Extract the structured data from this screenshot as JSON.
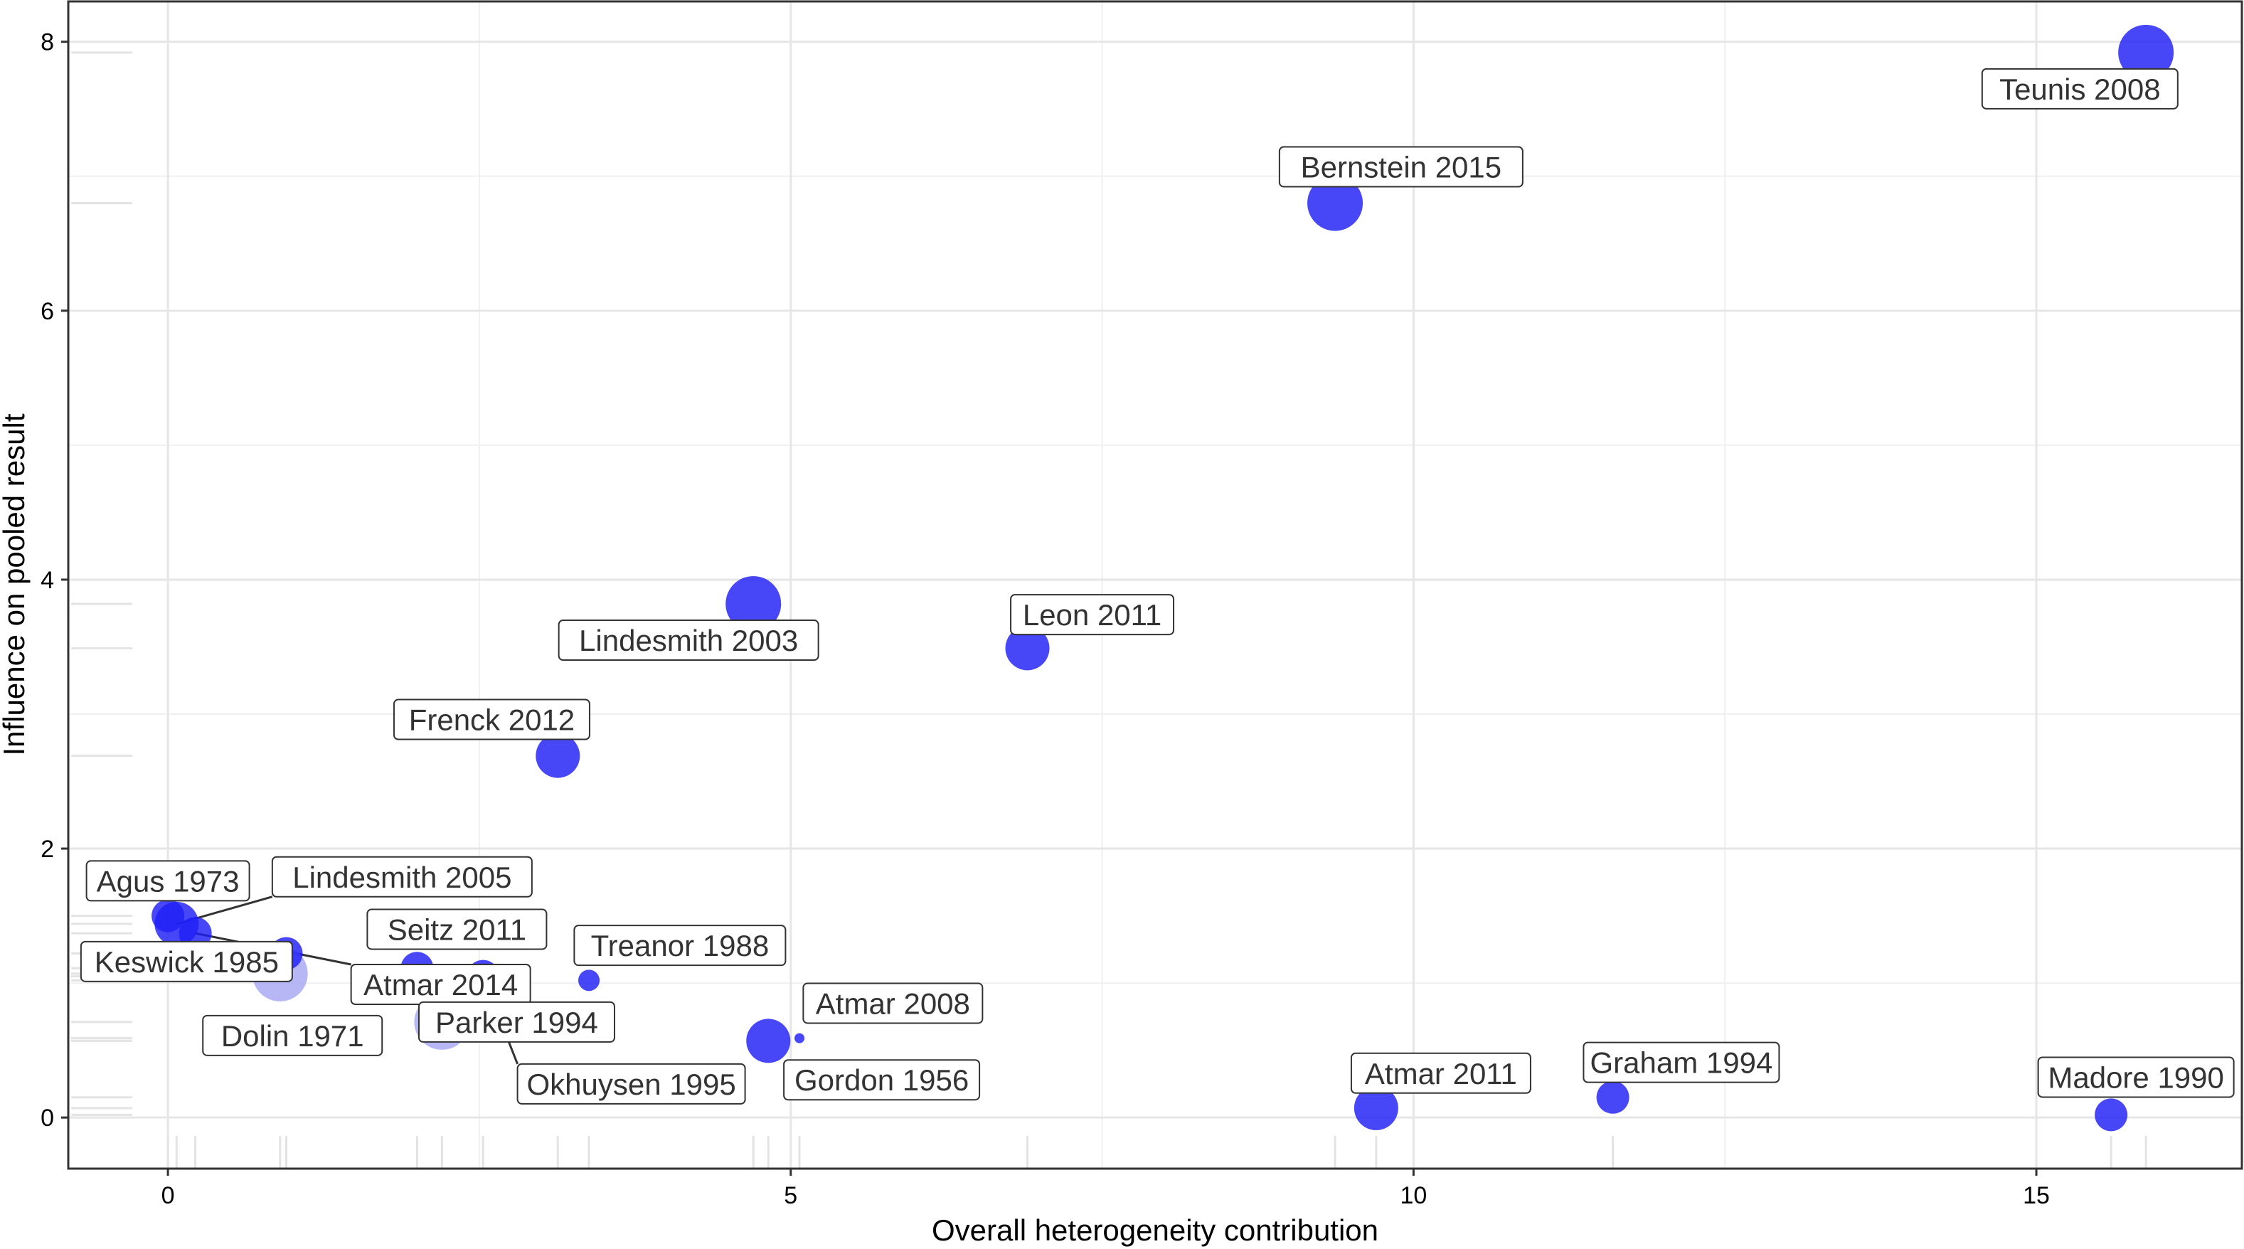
{
  "chart_data": {
    "type": "scatter",
    "title": "",
    "xlabel": "Overall heterogeneity contribution",
    "ylabel": "Influence on pooled result",
    "xlim": [
      -0.8,
      16.65
    ],
    "ylim": [
      -0.38,
      8.3
    ],
    "x_ticks": [
      0,
      5,
      10,
      15
    ],
    "y_ticks": [
      0,
      2,
      4,
      6,
      8
    ],
    "x_tick_labels": [
      "0",
      "5",
      "10",
      "15"
    ],
    "y_tick_labels": [
      "0",
      "2",
      "4",
      "6",
      "8"
    ],
    "grid": true,
    "point_color": "#1e1ef5",
    "faded_point_color": "#aaaaf5",
    "points": [
      {
        "label": "Teunis 2008",
        "x": 15.88,
        "y": 7.92,
        "size": 3
      },
      {
        "label": "Bernstein 2015",
        "x": 9.37,
        "y": 6.8,
        "size": 3
      },
      {
        "label": "Lindesmith 2003",
        "x": 4.7,
        "y": 3.82,
        "size": 3
      },
      {
        "label": "Leon 2011",
        "x": 6.9,
        "y": 3.49,
        "size": 2
      },
      {
        "label": "Frenck 2012",
        "x": 3.13,
        "y": 2.69,
        "size": 2
      },
      {
        "label": "Agus 1973",
        "x": 0.0,
        "y": 1.5,
        "size": 1
      },
      {
        "label": "Lindesmith 2005",
        "x": 0.07,
        "y": 1.44,
        "size": 2
      },
      {
        "label": "Keswick 1985",
        "x": 0.95,
        "y": 1.22,
        "size": 1
      },
      {
        "label": "Atmar 2014",
        "x": 0.22,
        "y": 1.37,
        "size": 1
      },
      {
        "label": "Dolin 1971",
        "x": 0.9,
        "y": 1.07,
        "size": 3,
        "faded": true
      },
      {
        "label": "Seitz 2011",
        "x": 2.0,
        "y": 1.11,
        "size": 1
      },
      {
        "label": "Parker 1994",
        "x": 2.2,
        "y": 0.71,
        "size": 3,
        "faded": true
      },
      {
        "label": "Okhuysen 1995",
        "x": 2.53,
        "y": 1.05,
        "size": 1
      },
      {
        "label": "Treanor 1988",
        "x": 3.38,
        "y": 1.02,
        "size": 0
      },
      {
        "label": "Atmar 2008",
        "x": 5.07,
        "y": 0.59,
        "size": -1
      },
      {
        "label": "Gordon 1956",
        "x": 4.82,
        "y": 0.57,
        "size": 2
      },
      {
        "label": "Atmar 2011",
        "x": 9.7,
        "y": 0.07,
        "size": 2
      },
      {
        "label": "Graham 1994",
        "x": 11.6,
        "y": 0.15,
        "size": 1
      },
      {
        "label": "Madore 1990",
        "x": 15.6,
        "y": 0.02,
        "size": 1
      }
    ]
  }
}
